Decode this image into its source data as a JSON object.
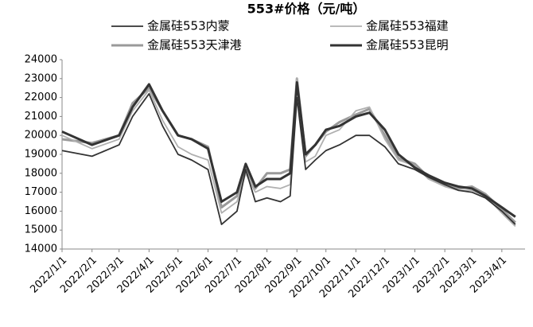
{
  "chart_data": {
    "type": "line",
    "title": "553#价格（元/吨）",
    "x": [
      "2022/1/1",
      "2022/2/1",
      "2022/3/1",
      "2022/3/15",
      "2022/4/1",
      "2022/4/15",
      "2022/5/1",
      "2022/5/15",
      "2022/6/1",
      "2022/6/15",
      "2022/7/1",
      "2022/7/10",
      "2022/7/20",
      "2022/8/1",
      "2022/8/15",
      "2022/8/25",
      "2022/9/1",
      "2022/9/10",
      "2022/9/20",
      "2022/10/1",
      "2022/10/15",
      "2022/11/1",
      "2022/11/15",
      "2022/12/1",
      "2022/12/15",
      "2023/1/1",
      "2023/1/15",
      "2023/2/1",
      "2023/2/15",
      "2023/3/1",
      "2023/3/15",
      "2023/4/1",
      "2023/4/15"
    ],
    "series": [
      {
        "name": "金属硅553内蒙",
        "color": "#333333",
        "width": 1.8,
        "values": [
          19200,
          18900,
          19500,
          21000,
          22200,
          20500,
          19000,
          18700,
          18200,
          15300,
          16000,
          18200,
          16500,
          16700,
          16500,
          16800,
          22000,
          18200,
          18700,
          19200,
          19500,
          20000,
          20000,
          19400,
          18500,
          18200,
          17800,
          17400,
          17100,
          17000,
          16700,
          16000,
          15300
        ]
      },
      {
        "name": "金属硅553福建",
        "color": "#b0b0b0",
        "width": 1.8,
        "values": [
          20000,
          19300,
          19800,
          21300,
          22400,
          20800,
          19400,
          19000,
          18700,
          15900,
          16500,
          18000,
          17000,
          17300,
          17200,
          17400,
          23000,
          18600,
          18900,
          20000,
          20300,
          21300,
          21500,
          19800,
          18700,
          18400,
          17700,
          17300,
          17100,
          17100,
          16800,
          15900,
          15200
        ]
      },
      {
        "name": "金属硅553天津港",
        "color": "#9a9a9a",
        "width": 3,
        "values": [
          19800,
          19600,
          20000,
          21700,
          22500,
          21300,
          20000,
          19800,
          19400,
          16200,
          16800,
          18300,
          17200,
          18000,
          18000,
          18200,
          23000,
          18900,
          19500,
          20200,
          20700,
          21100,
          21400,
          20000,
          18800,
          18500,
          17800,
          17400,
          17200,
          17300,
          16900,
          16100,
          15400
        ]
      },
      {
        "name": "金属硅553昆明",
        "color": "#333333",
        "width": 3,
        "values": [
          20200,
          19500,
          20000,
          21500,
          22700,
          21300,
          20000,
          19800,
          19300,
          16500,
          17000,
          18500,
          17300,
          17700,
          17700,
          18000,
          22800,
          19000,
          19500,
          20300,
          20500,
          21000,
          21200,
          20300,
          19000,
          18300,
          17900,
          17500,
          17300,
          17200,
          16800,
          16200,
          15700
        ]
      }
    ],
    "xlim": [
      "2022/1/1",
      "2023/4/25"
    ],
    "xticks": [
      "2022/1/1",
      "2022/2/1",
      "2022/3/1",
      "2022/4/1",
      "2022/5/1",
      "2022/6/1",
      "2022/7/1",
      "2022/8/1",
      "2022/9/1",
      "2022/10/1",
      "2022/11/1",
      "2022/12/1",
      "2023/1/1",
      "2023/2/1",
      "2023/3/1",
      "2023/4/1"
    ],
    "ylim": [
      14000,
      24000
    ],
    "yticks": [
      14000,
      15000,
      16000,
      17000,
      18000,
      19000,
      20000,
      21000,
      22000,
      23000,
      24000
    ]
  }
}
